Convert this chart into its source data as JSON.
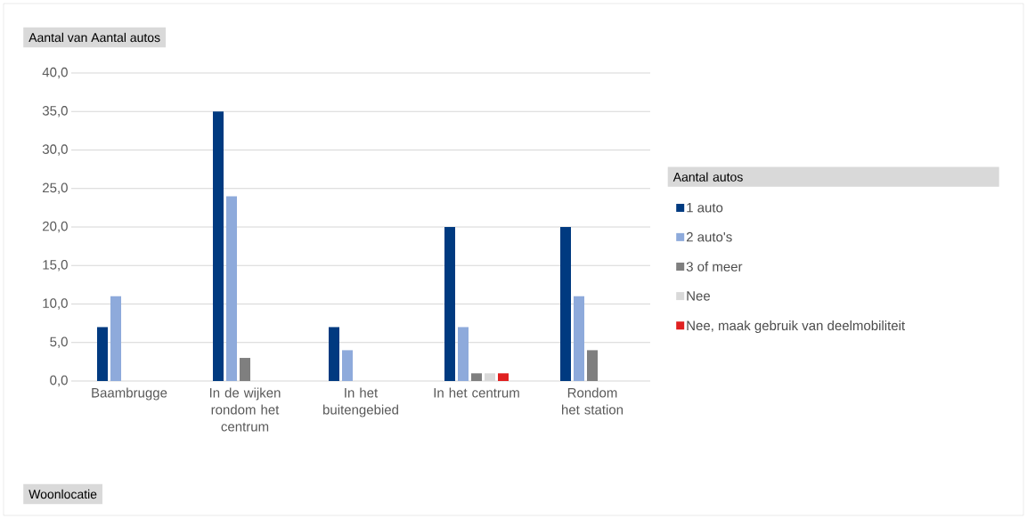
{
  "chart_data": {
    "type": "bar",
    "title": "Aantal van  Aantal autos",
    "xlabel": "Woonlocatie",
    "legend_title": "Aantal autos",
    "categories": [
      "Baambrugge",
      "In de wijken rondom het centrum",
      "In het buitengebied",
      "In het centrum",
      "Rondom het station"
    ],
    "series": [
      {
        "name": "1 auto",
        "color": "#003a80",
        "values": [
          7,
          35,
          7,
          20,
          20
        ]
      },
      {
        "name": "2 auto's",
        "color": "#8eaadb",
        "values": [
          11,
          24,
          4,
          7,
          11
        ]
      },
      {
        "name": "3 of meer",
        "color": "#7f7f7f",
        "values": [
          null,
          3,
          null,
          1,
          4
        ]
      },
      {
        "name": "Nee",
        "color": "#d9d9d9",
        "values": [
          null,
          null,
          null,
          1,
          null
        ]
      },
      {
        "name": "Nee, maak gebruik van deelmobiliteit",
        "color": "#e02020",
        "values": [
          null,
          null,
          null,
          1,
          null
        ]
      }
    ],
    "ylim": [
      0,
      40
    ],
    "yticks": [
      {
        "value": 0,
        "label": "0,0"
      },
      {
        "value": 5,
        "label": "5,0"
      },
      {
        "value": 10,
        "label": "10,0"
      },
      {
        "value": 15,
        "label": "15,0"
      },
      {
        "value": 20,
        "label": "20,0"
      },
      {
        "value": 25,
        "label": "25,0"
      },
      {
        "value": 30,
        "label": "30,0"
      },
      {
        "value": 35,
        "label": "35,0"
      },
      {
        "value": 40,
        "label": "40,0"
      }
    ],
    "grid": "y",
    "legend": "right"
  }
}
